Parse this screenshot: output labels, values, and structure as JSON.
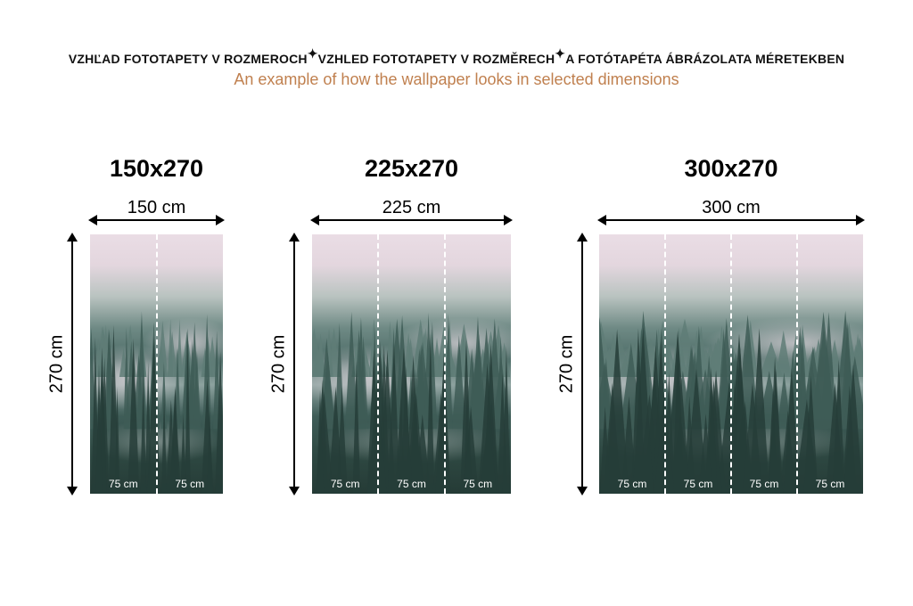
{
  "header": {
    "title_sk": "VZHĽAD FOTOTAPETY V ROZMEROCH",
    "title_cz": "VZHLED FOTOTAPETY V ROZMĚRECH",
    "title_hu": "A FOTÓTAPÉTA ÁBRÁZOLATA MÉRETEKBEN",
    "separator_icon": "sparkle-icon",
    "subtitle": "An example of how the wallpaper looks in selected dimensions",
    "subtitle_color": "#c0804f"
  },
  "variants": [
    {
      "size": "150x270",
      "width_label": "150 cm",
      "height_label": "270 cm",
      "panels": [
        "75 cm",
        "75 cm"
      ]
    },
    {
      "size": "225x270",
      "width_label": "225 cm",
      "height_label": "270 cm",
      "panels": [
        "75 cm",
        "75 cm",
        "75 cm"
      ]
    },
    {
      "size": "300x270",
      "width_label": "300 cm",
      "height_label": "270 cm",
      "panels": [
        "75 cm",
        "75 cm",
        "75 cm",
        "75 cm"
      ]
    }
  ]
}
